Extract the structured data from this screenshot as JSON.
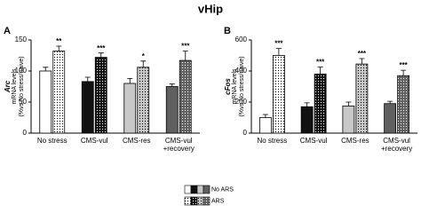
{
  "title": "vHip",
  "chart_data": [
    {
      "type": "bar",
      "panel": "A",
      "ylabel_gene": "Arc",
      "ylabel": [
        "mRNA levels",
        "(%vs No stress/naive)"
      ],
      "categories": [
        "No stress",
        "CMS-vul",
        "CMS-res",
        "CMS-vul +recovery"
      ],
      "category_colors": [
        "#ffffff",
        "#111111",
        "#c8c8c8",
        "#606060"
      ],
      "series": [
        {
          "name": "No ARS",
          "values": [
            100,
            83,
            80,
            75
          ],
          "errors": [
            6,
            7,
            8,
            4
          ]
        },
        {
          "name": "ARS",
          "values": [
            132,
            122,
            106,
            117
          ],
          "errors": [
            8,
            7,
            10,
            15
          ]
        }
      ],
      "annotations": [
        "**",
        "***",
        "*",
        "***"
      ],
      "ylim": [
        0,
        150
      ],
      "yticks": [
        0,
        50,
        100,
        150
      ]
    },
    {
      "type": "bar",
      "panel": "B",
      "ylabel_gene": "cFos",
      "ylabel": [
        "mRNA levels",
        "(%vs No stress/naive)"
      ],
      "categories": [
        "No stress",
        "CMS-vul",
        "CMS-res",
        "CMS-vul +recovery"
      ],
      "category_colors": [
        "#ffffff",
        "#111111",
        "#c8c8c8",
        "#606060"
      ],
      "series": [
        {
          "name": "No ARS",
          "values": [
            100,
            170,
            175,
            190
          ],
          "errors": [
            20,
            25,
            25,
            15
          ]
        },
        {
          "name": "ARS",
          "values": [
            500,
            380,
            445,
            370
          ],
          "errors": [
            45,
            45,
            35,
            35
          ]
        }
      ],
      "annotations": [
        "***",
        "***",
        "***",
        "***"
      ],
      "ylim": [
        0,
        600
      ],
      "yticks": [
        0,
        200,
        400,
        600
      ]
    }
  ]
}
